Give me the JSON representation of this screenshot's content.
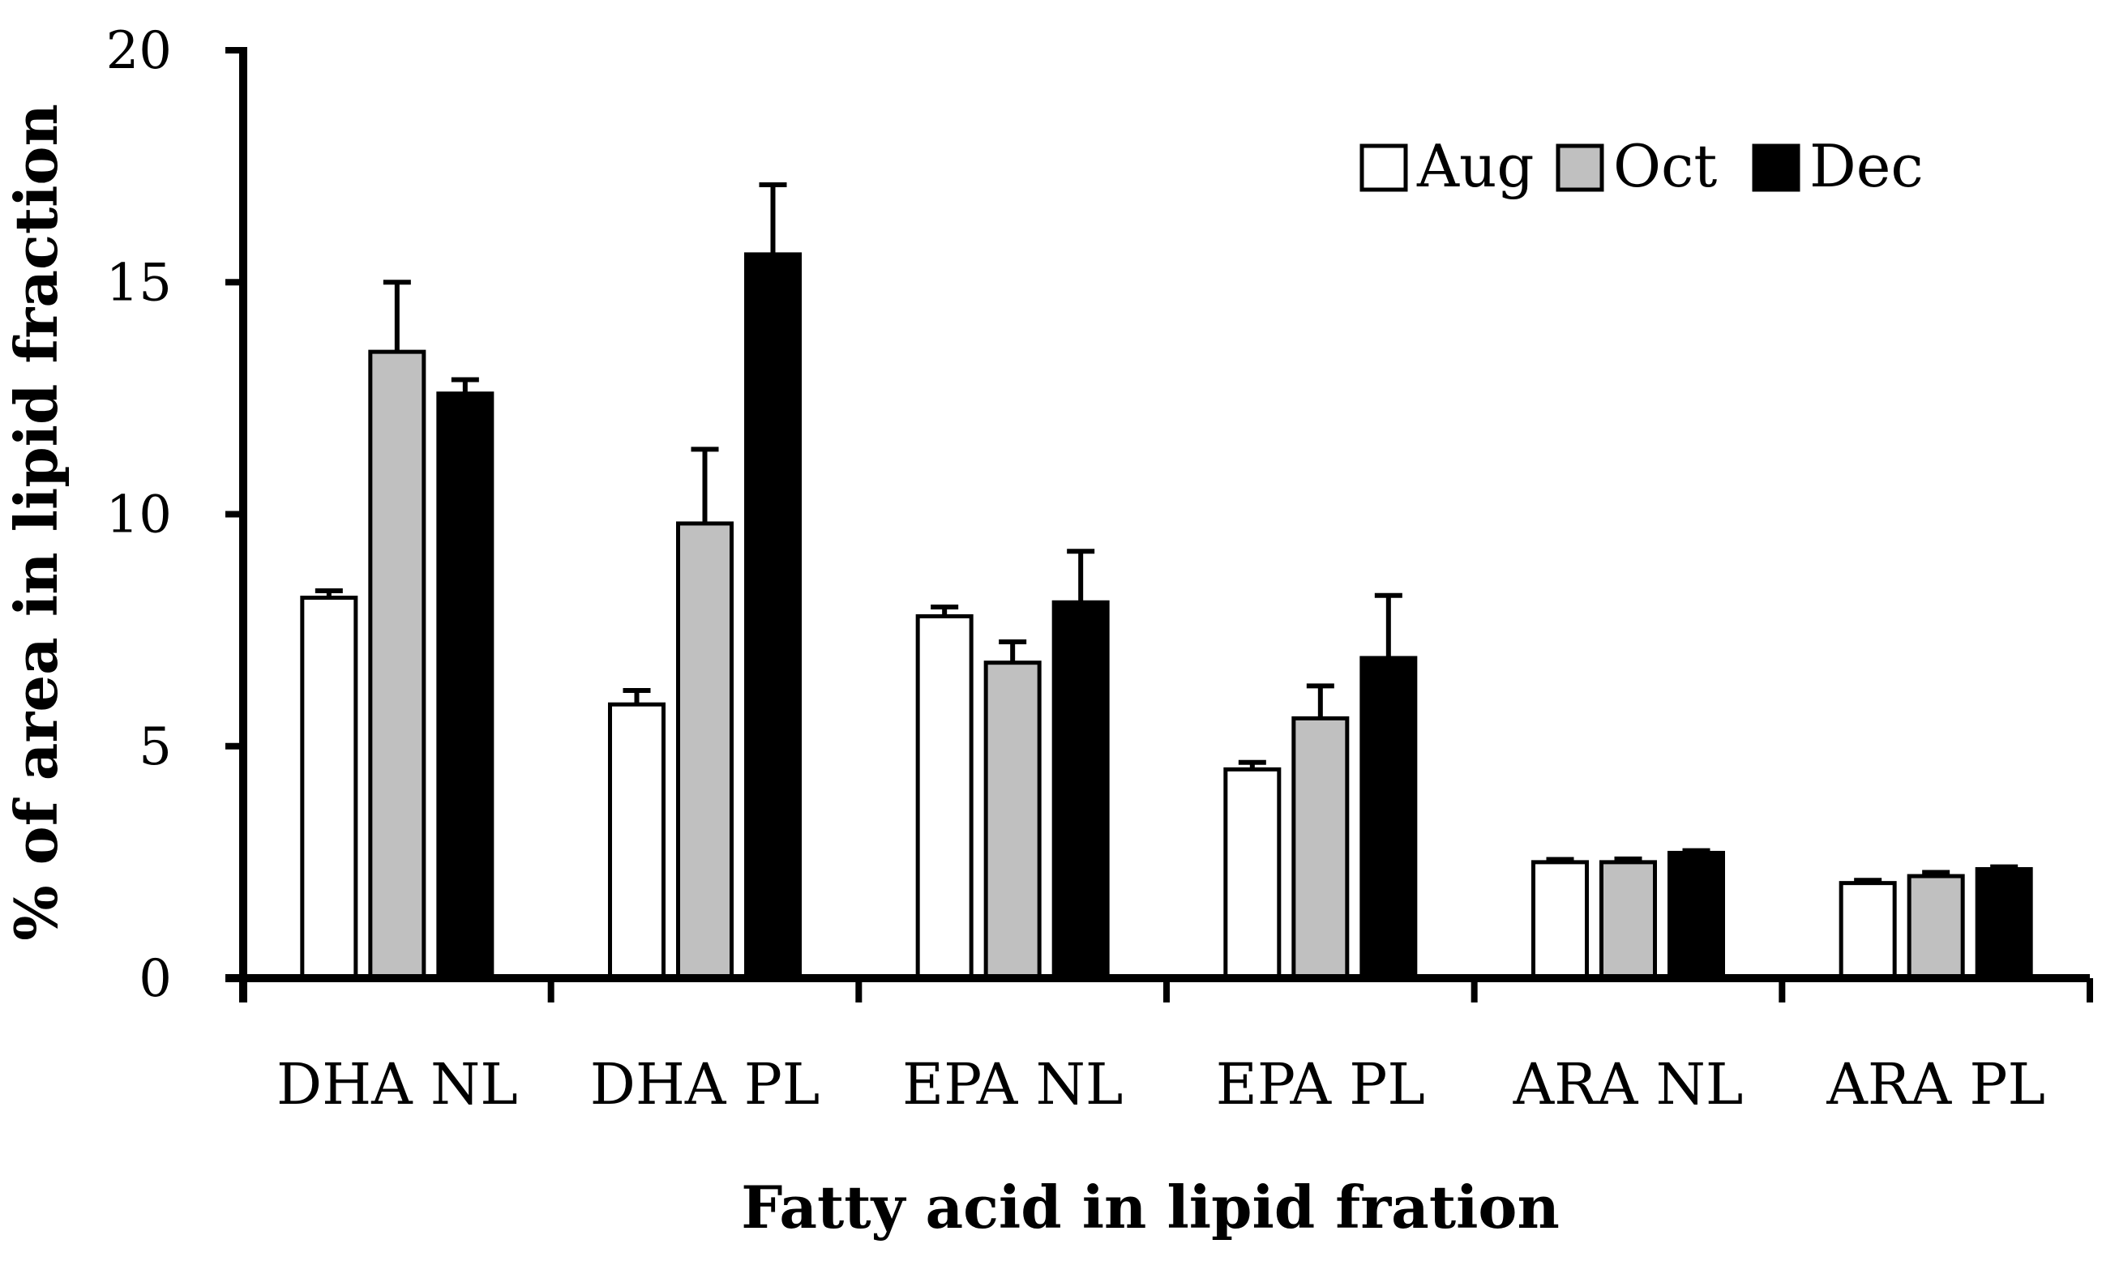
{
  "chart_data": {
    "type": "bar",
    "title": "",
    "xlabel": "Fatty acid in lipid fration",
    "ylabel": "% of area in lipid fraction",
    "ylim": [
      0,
      20
    ],
    "yticks": [
      0,
      5,
      10,
      15,
      20
    ],
    "categories": [
      "DHA NL",
      "DHA PL",
      "EPA NL",
      "EPA PL",
      "ARA NL",
      "ARA PL"
    ],
    "series": [
      {
        "name": "Aug",
        "color": "#ffffff",
        "values": [
          8.2,
          5.9,
          7.8,
          4.5,
          2.5,
          2.05
        ],
        "errors": [
          0.15,
          0.3,
          0.2,
          0.15,
          0.06,
          0.06
        ]
      },
      {
        "name": "Oct",
        "color": "#c0c0c0",
        "values": [
          13.5,
          9.8,
          6.8,
          5.6,
          2.5,
          2.2
        ],
        "errors": [
          1.5,
          1.6,
          0.45,
          0.7,
          0.07,
          0.08
        ]
      },
      {
        "name": "Dec",
        "color": "#000000",
        "values": [
          12.6,
          15.6,
          8.1,
          6.9,
          2.7,
          2.35
        ],
        "errors": [
          0.3,
          1.5,
          1.1,
          1.35,
          0.05,
          0.05
        ]
      }
    ],
    "legend": "top-right",
    "grid": false,
    "error_bars": "upper"
  }
}
